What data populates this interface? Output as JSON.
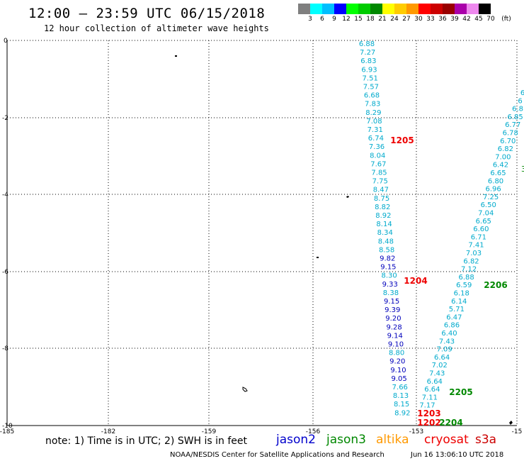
{
  "header": {
    "title": "12:00 – 23:59 UTC 06/15/2018",
    "subtitle": "12 hour collection of altimeter wave heights"
  },
  "color_scale": {
    "labels": [
      "3",
      "6",
      "9",
      "12",
      "15",
      "18",
      "21",
      "24",
      "27",
      "30",
      "33",
      "36",
      "39",
      "42",
      "45",
      "70"
    ],
    "unit": "(ft)",
    "colors": [
      "#7f7f7f",
      "#00ffff",
      "#00bfff",
      "#0000ff",
      "#00ff00",
      "#00cc00",
      "#008800",
      "#ffff00",
      "#ffcc00",
      "#ff9900",
      "#ff0000",
      "#cc0000",
      "#990000",
      "#aa00aa",
      "#ee88ee",
      "#000000"
    ]
  },
  "map": {
    "lon_ticks": [
      "-185",
      "-182",
      "-159",
      "-156",
      "-153",
      "-15"
    ],
    "lat_ticks": [
      "0",
      "-2",
      "-4",
      "-6",
      "-8",
      "-10"
    ]
  },
  "tracks": {
    "track_a": {
      "values": [
        "6.88",
        "7.27",
        "6.83",
        "6.93",
        "7.51",
        "7.57",
        "6.68",
        "7.83",
        "8.29",
        "7.08",
        "7.31",
        "6.74",
        "7.36",
        "8.04",
        "7.67",
        "7.85",
        "7.75",
        "8.47",
        "8.75",
        "8.82",
        "8.92",
        "8.14",
        "8.34",
        "8.48",
        "8.58",
        "9.82",
        "9.15",
        "8.30",
        "9.33",
        "8.38",
        "9.15",
        "9.39",
        "9.20",
        "9.28",
        "9.14",
        "9.10",
        "8.80",
        "9.20",
        "9.10",
        "9.05",
        "7.66",
        "8.13",
        "8.15",
        "8.92"
      ],
      "colors": [
        "c",
        "c",
        "c",
        "c",
        "c",
        "c",
        "c",
        "c",
        "c",
        "c",
        "c",
        "c",
        "c",
        "c",
        "c",
        "c",
        "c",
        "c",
        "c",
        "c",
        "c",
        "c",
        "c",
        "c",
        "c",
        "b",
        "b",
        "c",
        "b",
        "c",
        "b",
        "b",
        "b",
        "b",
        "b",
        "b",
        "c",
        "b",
        "b",
        "b",
        "c",
        "c",
        "c",
        "c"
      ]
    },
    "track_b": {
      "values": [
        "6",
        "6",
        "6.8",
        "6.85",
        "6.77",
        "6.78",
        "6.70",
        "6.82",
        "7.00",
        "6.42",
        "6.65",
        "6.80",
        "6.96",
        "7.25",
        "6.50",
        "7.04",
        "6.65",
        "6.60",
        "6.71",
        "7.41",
        "7.03",
        "6.82",
        "7.12",
        "6.88",
        "6.59",
        "6.18",
        "6.14",
        "5.71",
        "6.47",
        "6.86",
        "6.40",
        "7.43",
        "7.09",
        "6.64",
        "7.02",
        "7.43",
        "6.64",
        "6.64",
        "7.11",
        "7.17"
      ]
    },
    "time_labels": [
      {
        "text": "1205",
        "sat": "cryosat"
      },
      {
        "text": "1204",
        "sat": "cryosat"
      },
      {
        "text": "2206",
        "sat": "jason3"
      },
      {
        "text": "2205",
        "sat": "jason3"
      },
      {
        "text": "1203",
        "sat": "cryosat"
      },
      {
        "text": "1202",
        "sat": "cryosat"
      },
      {
        "text": "2204",
        "sat": "jason3"
      }
    ]
  },
  "footer": {
    "note": "note:  1) Time is in UTC;  2) SWH is in feet",
    "satellites": [
      {
        "name": "jason2",
        "color": "#0000cc"
      },
      {
        "name": "jason3",
        "color": "#008800"
      },
      {
        "name": "altika",
        "color": "#ff9900"
      },
      {
        "name": "cryosat",
        "color": "#ee0000"
      },
      {
        "name": "s3a",
        "color": "#cc0000"
      }
    ],
    "credit": "NOAA/NESDIS Center for Satellite Applications and Research",
    "timestamp": "Jun 16 13:06:10 UTC 2018"
  }
}
